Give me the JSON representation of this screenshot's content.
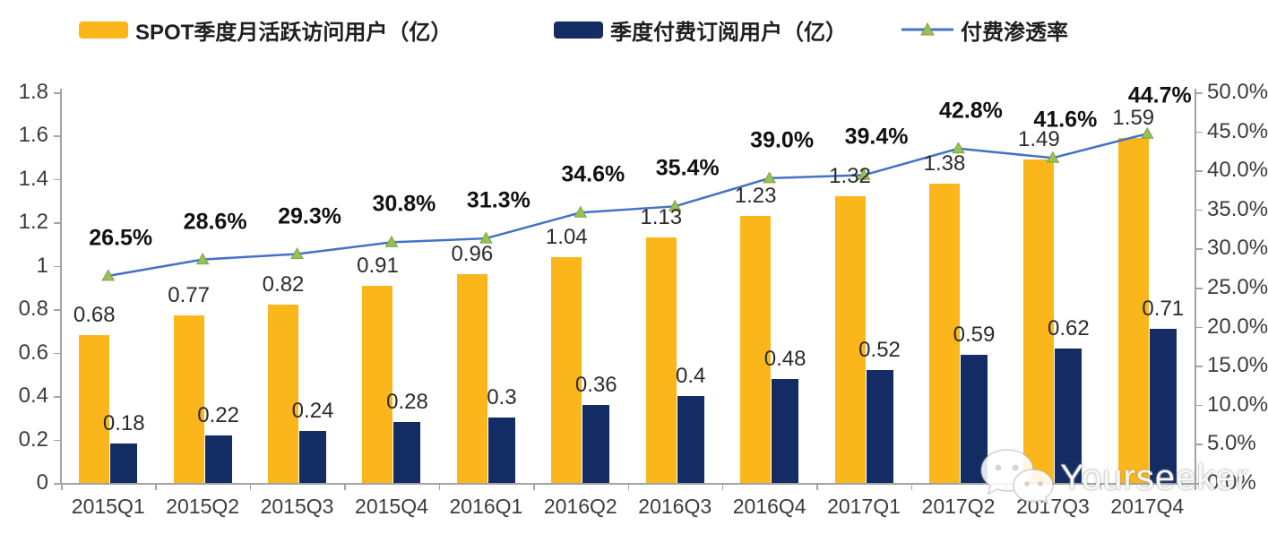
{
  "legend": {
    "items": [
      {
        "label": "SPOT季度月活跃访问用户（亿）",
        "swatch": "bar",
        "color": "#FBB61B"
      },
      {
        "label": "季度付费订阅用户（亿）",
        "swatch": "bar",
        "color": "#132C63"
      },
      {
        "label": "付费渗透率",
        "swatch": "line",
        "color": "#4472C4",
        "marker_color": "#97BF5A",
        "marker_stroke": "#7DA53F"
      }
    ]
  },
  "chart_data": {
    "type": "combo-bar-line",
    "categories": [
      "2015Q1",
      "2015Q2",
      "2015Q3",
      "2015Q4",
      "2016Q1",
      "2016Q2",
      "2016Q3",
      "2016Q4",
      "2017Q1",
      "2017Q2",
      "2017Q3",
      "2017Q4"
    ],
    "series": [
      {
        "name": "SPOT季度月活跃访问用户（亿）",
        "type": "bar",
        "axis": "left",
        "color": "#FBB61B",
        "values": [
          0.68,
          0.77,
          0.82,
          0.91,
          0.96,
          1.04,
          1.13,
          1.23,
          1.32,
          1.38,
          1.49,
          1.59
        ],
        "labels": [
          "0.68",
          "0.77",
          "0.82",
          "0.91",
          "0.96",
          "1.04",
          "1.13",
          "1.23",
          "1.32",
          "1.38",
          "1.49",
          "1.59"
        ]
      },
      {
        "name": "季度付费订阅用户（亿）",
        "type": "bar",
        "axis": "left",
        "color": "#132C63",
        "values": [
          0.18,
          0.22,
          0.24,
          0.28,
          0.3,
          0.36,
          0.4,
          0.48,
          0.52,
          0.59,
          0.62,
          0.71
        ],
        "labels": [
          "0.18",
          "0.22",
          "0.24",
          "0.28",
          "0.3",
          "0.36",
          "0.4",
          "0.48",
          "0.52",
          "0.59",
          "0.62",
          "0.71"
        ]
      },
      {
        "name": "付费渗透率",
        "type": "line",
        "axis": "right",
        "color": "#4472C4",
        "marker": "triangle",
        "marker_color": "#97BF5A",
        "marker_stroke": "#7DA53F",
        "values": [
          26.5,
          28.6,
          29.3,
          30.8,
          31.3,
          34.6,
          35.4,
          39.0,
          39.4,
          42.8,
          41.6,
          44.7
        ],
        "labels": [
          "26.5%",
          "28.6%",
          "29.3%",
          "30.8%",
          "31.3%",
          "34.6%",
          "35.4%",
          "39.0%",
          "39.4%",
          "42.8%",
          "41.6%",
          "44.7%"
        ]
      }
    ],
    "left_axis": {
      "min": 0,
      "max": 1.8,
      "ticks": [
        "0",
        "0.2",
        "0.4",
        "0.6",
        "0.8",
        "1",
        "1.2",
        "1.4",
        "1.6",
        "1.8"
      ]
    },
    "right_axis": {
      "min": 0,
      "max": 50,
      "ticks": [
        "0.0%",
        "5.0%",
        "10.0%",
        "15.0%",
        "20.0%",
        "25.0%",
        "30.0%",
        "35.0%",
        "40.0%",
        "45.0%",
        "50.0%"
      ]
    },
    "grid": false,
    "legend_position": "top"
  },
  "watermark": {
    "text": "Yourseeker",
    "icon": "wechat-icon"
  }
}
